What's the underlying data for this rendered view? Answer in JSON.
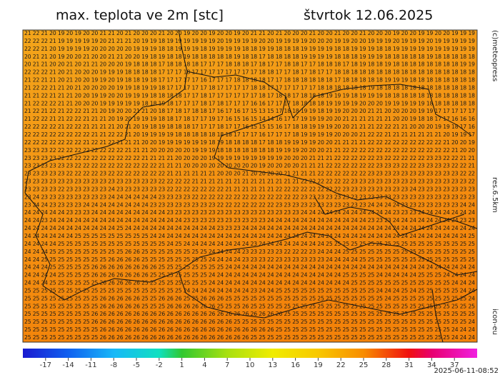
{
  "header": {
    "title": "max. teplota ve 2m [stc]",
    "date": "štvrtok 12.06.2025"
  },
  "side_labels": {
    "copyright": "(c)meteopress",
    "resolution": "res.6.5km",
    "model": "icon-eu"
  },
  "timestamp": "2025-06-11-08:52",
  "grid": {
    "rows": [
      "21 22 21 20 19 20 19 20 20 21 21 20 21 20 20 20 21 20 20 19 20 20 19 20 20 19 20 21 21 20 21 20 20 20 21 20 20 21 20 20 21 20 20 20 19 20 20 19 19 20 20 19 19 19",
      "22 22 22 21 19 19 19 19 19 20 21 21 21 20 19 19 18 19 19 19 19 19 19 20 19 19 19 19 20 20 19 19 19 19 20 20 20 19 19 20 20 19 19 19 20 19 19 19 20 19 19 19 19 19",
      "22 22 21 20 19 19 19 19 20 20 20 20 20 19 19 19 18 18 19 19 19 18 19 19 19 19 18 18 19 19 18 18 18 19 19 19 19 18 18 19 19 19 18 18 19 19 19 19 19 19 19 19 19 19",
      "20 21 21 20 19 20 20 21 20 20 21 21 20 20 19 18 19 18 18 19 18 18 18 18 18 19 18 18 17 18 18 18 18 19 19 19 19 18 18 18 19 19 19 18 18 18 18 18 19 18 18 18 18 18",
      "20 21 21 20 20 21 20 21 21 20 20 20 19 18 18 18 17 18 18 18 18 17 17 17 18 18 18 17 18 17 17 18 18 17 17 18 18 18 17 18 19 18 18 19 18 18 18 18 18 18 18 18 19 19",
      "22 22 22 21 20 21 20 20 20 19 19 19 18 18 18 18 17 17 17 18 17 17 17 17 17 17 17 17 18 18 17 17 18 17 18 17 17 18 18 18 18 18 18 18 18 18 18 18 18 18 18 18 18 18",
      "21 22 21 21 20 21 20 20 19 19 20 19 18 18 19 18 17 17 17 17 17 16 17 17 17 18 18 18 18 17 17 18 18 18 18 18 18 17 18 18 18 18 18 19 19 19 18 18 18 18 18 18 18 18",
      "21 22 22 21 21 20 21 20 20 20 20 19 19 18 19 19 18 17 17 17 17 17 18 17 17 17 17 18 18 17 17 17 17 17 17 18 18 18 18 18 18 19 18 18 18 18 18 18 18 18 18 18 18 18",
      "21 21 22 21 21 21 20 20 19 19 20 20 19 19 19 18 18 18 18 17 17 18 17 17 17 17 17 17 18 17 18 18 17 18 18 18 19 19 19 18 19 19 19 18 18 18 18 18 18 18 18 18 18 18",
      "21 22 22 22 21 21 20 20 20 19 19 19 19 19 18 18 19 18 17 17 17 18 17 18 17 17 17 16 16 17 17 17 18 18 18 18 19 19 19 19 20 20 20 19 19 19 19 19 18 18 18 18 18 18",
      "21 22 21 22 21 22 22 21 21 20 19 20 20 21 21 20 18 17 18 17 18 18 17 16 17 16 17 15 13 15 17 18 18 19 19 18 19 19 20 20 20 21 21 20 20 20 20 19 19 17 17 17 17 17",
      "21 22 22 21 21 22 22 21 21 21 20 19 20 19 19 19 18 18 17 18 17 17 19 17 16 15 16 15 14 14 16 17 17 19 19 19 20 20 21 21 21 21 21 21 20 20 19 18 18 17 17 16 16 16",
      "22 22 22 22 21 22 22 21 21 21 21 20 21 20 19 18 19 18 18 18 17 17 17 18 17 17 16 15 15 15 16 17 18 18 19 19 19 20 20 21 21 21 22 22 21 21 20 20 20 19 19 18 17 16",
      "22 22 22 22 22 22 22 22 21 21 22 22 21 20 19 19 19 19 18 18 18 18 18 18 18 17 17 17 16 17 17 17 18 19 19 19 19 20 20 20 21 22 22 21 21 21 21 21 21 21 20 19 19 17",
      "22 22 22 22 22 22 22 21 22 21 22 21 21 21 20 20 19 19 19 19 19 19 18 19 18 18 18 18 17 18 18 19 19 19 19 20 20 21 21 21 21 22 22 22 22 22 22 22 22 22 21 20 20 19",
      "23 23 23 22 22 22 22 22 22 22 22 22 21 21 21 20 20 20 20 20 19 19 19 18 18 18 18 18 18 18 19 19 19 20 20 20 21 21 22 22 22 22 22 22 22 22 22 22 22 22 22 21 20 20",
      "23 23 23 23 22 22 22 22 22 22 22 22 22 22 21 21 21 21 20 20 20 20 19 19 19 19 19 19 19 19 19 20 20 20 21 21 21 22 22 22 22 22 23 22 22 22 22 22 23 23 22 22 21 21",
      "23 23 23 23 23 23 22 22 22 22 22 22 22 22 22 22 21 21 21 20 20 20 20 20 20 20 20 20 19 20 20 20 20 21 21 21 22 22 22 22 22 22 23 23 23 22 22 23 23 23 23 22 22 21",
      "23 23 23 23 23 22 22 22 22 23 22 22 22 22 22 22 22 21 21 21 21 21 21 20 20 20 21 20 20 20 20 21 21 21 21 22 22 22 22 22 22 23 23 23 23 23 23 23 23 23 23 23 22 22",
      "23 23 23 23 23 23 23 23 23 23 23 23 23 23 23 23 22 22 22 22 21 21 21 21 21 21 21 21 21 21 21 21 21 22 22 22 22 22 22 23 23 23 23 23 23 23 23 23 23 23 23 23 23 22",
      "23 23 23 23 22 23 23 23 23 23 24 23 23 23 23 23 23 22 22 22 22 22 22 22 21 21 21 21 21 21 22 22 22 22 22 22 22 22 23 23 23 23 23 23 23 23 24 23 23 23 23 23 23 23",
      "23 24 23 23 23 23 23 23 23 23 24 24 24 24 24 24 23 23 23 23 22 22 22 22 22 22 22 22 22 22 22 22 22 23 23 23 23 23 23 23 23 23 23 23 23 23 23 23 23 23 23 23 23 23",
      "23 24 24 23 23 23 23 24 24 24 24 24 24 24 24 23 23 23 23 23 23 23 23 22 22 22 22 22 22 22 23 23 23 23 23 23 23 23 23 23 23 24 24 24 24 23 23 23 23 23 23 23 24 24",
      "24 24 24 24 24 23 23 23 24 24 24 24 24 24 24 24 24 23 23 23 23 23 23 23 23 23 23 23 23 23 23 23 23 24 24 24 24 24 24 24 24 24 24 24 23 23 23 24 24 24 24 24 24 24",
      "24 24 23 24 24 24 24 24 24 24 24 24 24 24 24 24 24 24 24 23 23 23 23 23 23 23 23 23 23 24 24 24 24 24 24 24 24 24 24 24 24 23 23 23 24 24 24 24 24 24 24 24 23 23",
      "24 24 24 24 24 24 24 24 24 24 24 25 24 24 24 24 24 24 24 24 24 24 24 23 23 23 24 24 24 24 24 24 24 24 24 24 24 24 24 24 24 24 24 24 24 24 24 24 24 24 24 24 24 24",
      "24 24 24 24 24 24 25 25 25 25 25 25 25 25 25 24 24 24 24 24 24 24 24 24 24 24 24 24 24 24 24 24 24 24 24 24 24 24 24 24 24 24 24 24 24 24 24 24 24 24 24 24 24 25",
      "24 24 24 24 25 25 25 25 25 25 25 25 25 25 25 25 25 24 25 24 24 24 24 24 24 24 24 23 24 24 24 24 24 24 24 24 25 25 25 25 25 25 25 25 25 25 25 25 25 25 25 25 25 25",
      "24 24 24 25 25 25 25 25 25 25 25 25 26 26 25 25 25 25 25 25 25 25 24 24 24 24 23 23 23 23 23 22 22 22 23 24 24 24 25 25 25 25 25 25 25 25 25 25 25 25 25 25 25 25",
      "24 24 25 25 25 25 25 25 25 25 26 26 26 26 25 25 25 25 25 25 25 25 24 24 24 24 23 23 23 22 23 23 23 23 23 23 24 24 24 24 25 25 25 25 25 25 25 25 25 25 25 25 25 25",
      "24 24 24 25 25 25 25 25 26 26 26 26 26 26 26 26 25 25 25 25 25 25 25 25 24 24 24 24 24 24 24 24 24 24 24 24 24 24 24 24 24 24 24 24 24 24 24 24 24 24 24 24 24 24",
      "24 24 24 24 25 25 25 25 26 26 26 26 26 26 26 25 25 25 25 25 25 25 24 24 24 24 24 24 24 24 24 24 24 24 24 24 24 24 25 25 25 25 24 24 24 24 24 25 25 25 24 24 24 24",
      "24 24 24 25 25 25 25 25 25 26 26 26 26 26 25 25 25 25 25 25 25 25 24 24 24 24 24 24 24 24 24 24 24 24 24 24 24 24 24 25 25 25 25 25 25 25 25 25 25 25 25 24 24 24",
      "25 25 25 25 25 25 25 25 25 25 25 25 25 25 25 25 25 25 25 24 24 24 24 24 24 24 24 23 24 24 25 25 25 25 25 25 25 25 25 25 25 25 24 24 24 25 24 25 25 25 25 25 24 24",
      "25 25 25 25 25 25 25 25 25 26 26 26 26 26 25 25 26 26 26 25 25 26 26 26 25 25 25 25 25 25 25 25 25 25 25 25 25 25 25 25 25 25 25 24 25 25 25 25 25 25 25 25 25 24",
      "25 25 25 25 25 25 25 25 25 26 26 26 26 26 25 25 25 26 26 26 26 26 26 25 25 25 26 25 25 25 25 25 25 25 25 25 25 25 25 25 25 25 25 25 25 25 25 25 25 25 25 25 25 25",
      "25 25 25 25 25 25 25 25 26 26 26 26 26 26 26 26 26 26 26 26 26 26 26 26 26 26 26 26 26 26 26 25 25 25 25 25 25 25 25 25 25 25 25 25 25 25 25 25 25 25 25 25 25 25",
      "25 25 25 25 25 25 25 25 26 26 26 26 26 26 26 26 26 26 26 26 26 26 26 26 26 25 25 25 25 25 25 25 25 25 25 25 25 25 25 25 25 25 25 25 25 25 25 25 25 25 25 25 25 24",
      "25 25 25 25 25 25 25 25 25 26 26 26 26 26 26 26 26 26 26 26 26 26 26 26 26 26 26 26 26 26 25 25 25 25 25 25 25 25 25 25 25 25 25 25 25 25 25 25 25 25 25 24 24 24",
      "25 25 25 25 25 25 25 25 25 26 26 26 26 26 26 26 26 26 26 26 26 26 26 26 26 26 26 25 25 25 25 25 25 25 25 25 25 25 25 25 25 25 25 25 25 25 25 25 25 25 25 24 24 24"
    ]
  },
  "colorbar": {
    "lim": [
      -20,
      40
    ],
    "ticks": [
      -17,
      -14,
      -11,
      -8,
      -5,
      -2,
      1,
      4,
      7,
      10,
      13,
      16,
      19,
      22,
      25,
      28,
      31,
      34,
      37
    ]
  }
}
